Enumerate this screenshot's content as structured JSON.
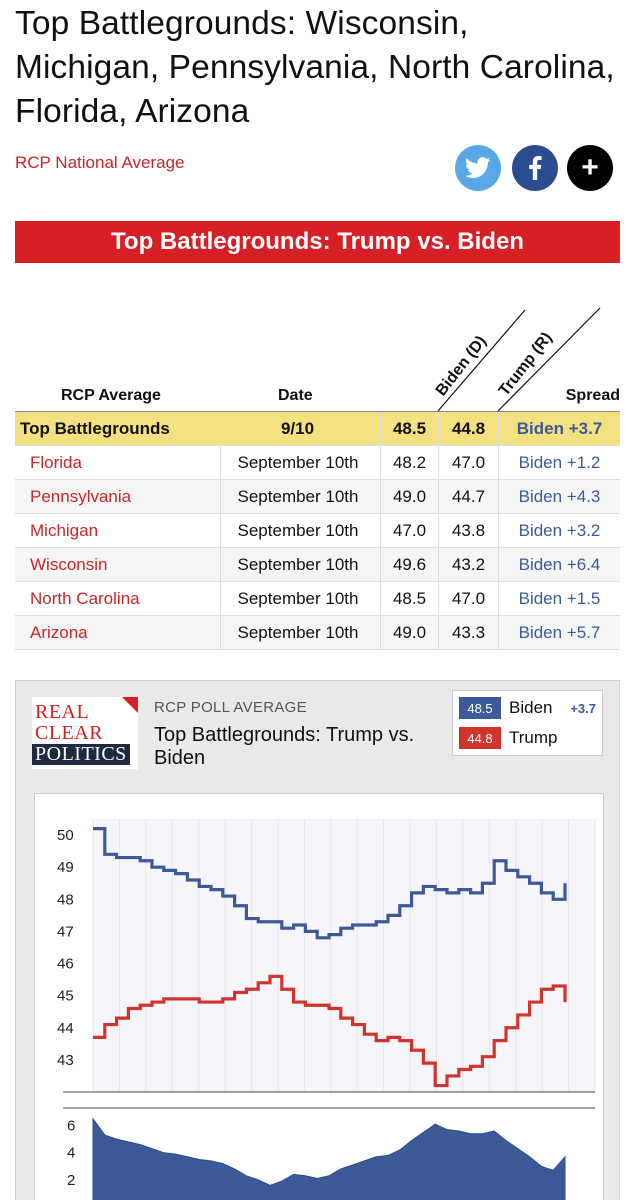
{
  "headline": "Top Battlegrounds: Wisconsin, Michigan, Pennsylvania, North Carolina, Florida, Arizona",
  "subhead": "RCP National Average",
  "share": {
    "twitter": "twitter-icon",
    "facebook": "facebook-icon",
    "more": "+"
  },
  "banner": "Top Battlegrounds: Trump vs. Biden",
  "table": {
    "headers": {
      "avg": "RCP Average",
      "date": "Date",
      "biden": "Biden (D)",
      "trump": "Trump (R)",
      "spread": "Spread"
    },
    "top": {
      "name": "Top Battlegrounds",
      "date": "9/10",
      "biden": "48.5",
      "trump": "44.8",
      "spread": "Biden +3.7"
    },
    "rows": [
      {
        "name": "Florida",
        "date": "September 10th",
        "biden": "48.2",
        "trump": "47.0",
        "spread": "Biden +1.2"
      },
      {
        "name": "Pennsylvania",
        "date": "September 10th",
        "biden": "49.0",
        "trump": "44.7",
        "spread": "Biden +4.3"
      },
      {
        "name": "Michigan",
        "date": "September 10th",
        "biden": "47.0",
        "trump": "43.8",
        "spread": "Biden +3.2"
      },
      {
        "name": "Wisconsin",
        "date": "September 10th",
        "biden": "49.6",
        "trump": "43.2",
        "spread": "Biden +6.4"
      },
      {
        "name": "North Carolina",
        "date": "September 10th",
        "biden": "48.5",
        "trump": "47.0",
        "spread": "Biden +1.5"
      },
      {
        "name": "Arizona",
        "date": "September 10th",
        "biden": "49.0",
        "trump": "43.3",
        "spread": "Biden +5.7"
      }
    ]
  },
  "widget": {
    "logo": {
      "l1": "REAL",
      "l2": "CLEAR",
      "l3": "POLITICS"
    },
    "kicker": "RCP POLL AVERAGE",
    "title": "Top Battlegrounds: Trump vs. Biden",
    "legend": {
      "biden_value": "48.5",
      "biden_name": "Biden",
      "spread": "+3.7",
      "trump_value": "44.8",
      "trump_name": "Trump"
    }
  },
  "chart_data": [
    {
      "type": "line",
      "title": "Top Battlegrounds: Trump vs. Biden",
      "ylim": [
        42,
        50.5
      ],
      "yticks": [
        "50",
        "49",
        "48",
        "47",
        "46",
        "45",
        "44",
        "43"
      ],
      "colors": {
        "biden": "#3d5a98",
        "trump": "#d0342c"
      },
      "series": [
        {
          "name": "Biden",
          "values": [
            50.2,
            49.4,
            49.3,
            49.3,
            49.2,
            49.0,
            48.9,
            48.8,
            48.6,
            48.4,
            48.3,
            48.1,
            47.8,
            47.4,
            47.3,
            47.3,
            47.1,
            47.2,
            47.0,
            46.8,
            46.9,
            47.1,
            47.2,
            47.2,
            47.3,
            47.5,
            47.8,
            48.2,
            48.4,
            48.3,
            48.2,
            48.3,
            48.2,
            48.5,
            49.2,
            48.9,
            48.7,
            48.5,
            48.2,
            48.0,
            48.5
          ]
        },
        {
          "name": "Trump",
          "values": [
            43.7,
            44.1,
            44.3,
            44.6,
            44.7,
            44.8,
            44.9,
            44.9,
            44.9,
            44.8,
            44.8,
            44.9,
            45.1,
            45.2,
            45.4,
            45.6,
            45.2,
            44.8,
            44.7,
            44.7,
            44.6,
            44.3,
            44.1,
            43.8,
            43.6,
            43.7,
            43.6,
            43.3,
            42.9,
            42.2,
            42.5,
            42.7,
            42.8,
            43.1,
            43.6,
            44.0,
            44.4,
            44.8,
            45.2,
            45.3,
            44.8
          ]
        }
      ]
    },
    {
      "type": "area",
      "title": "Spread",
      "ylim": [
        0,
        7
      ],
      "yticks": [
        "6",
        "4",
        "2"
      ],
      "series": [
        {
          "name": "Spread",
          "values": [
            6.5,
            5.3,
            5.0,
            4.8,
            4.6,
            4.3,
            4.0,
            3.9,
            3.7,
            3.5,
            3.4,
            3.2,
            2.8,
            2.3,
            2.0,
            1.6,
            1.9,
            2.4,
            2.3,
            2.1,
            2.3,
            2.8,
            3.1,
            3.4,
            3.7,
            3.8,
            4.2,
            4.9,
            5.5,
            6.1,
            5.7,
            5.6,
            5.4,
            5.4,
            5.6,
            4.9,
            4.3,
            3.7,
            3.0,
            2.7,
            3.7
          ]
        }
      ]
    }
  ]
}
